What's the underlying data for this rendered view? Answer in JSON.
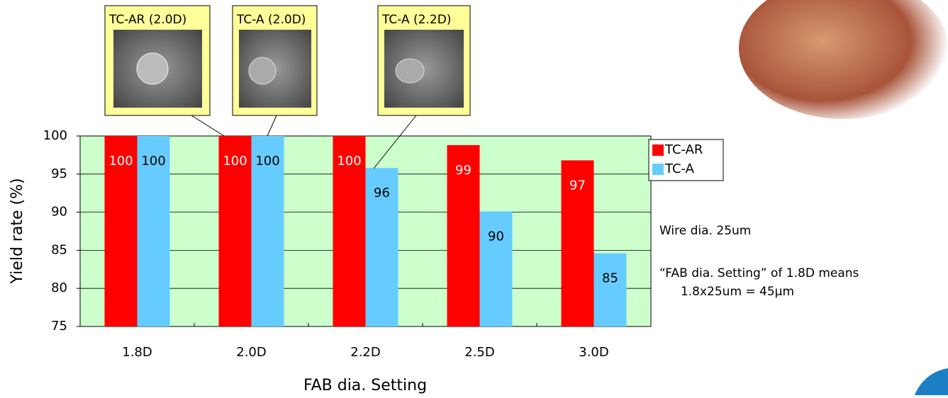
{
  "chart_data": {
    "type": "bar",
    "x_label": "FAB dia. Setting",
    "y_label": "Yield rate (%)",
    "categories": [
      "1.8D",
      "2.0D",
      "2.2D",
      "2.5D",
      "3.0D"
    ],
    "series": [
      {
        "name": "TC-AR",
        "color": "#ff0000",
        "values": [
          100,
          100,
          100,
          98.8,
          96.8
        ],
        "value_labels": [
          "100",
          "100",
          "100",
          "99",
          "97"
        ]
      },
      {
        "name": "TC-A",
        "color": "#66ccff",
        "values": [
          100,
          100,
          95.8,
          90.1,
          84.6
        ],
        "value_labels": [
          "100",
          "100",
          "96",
          "90",
          "85"
        ]
      }
    ],
    "ylim": [
      75,
      100
    ],
    "yticks": [
      75,
      80,
      85,
      90,
      95,
      100
    ],
    "grid": true,
    "legend": "right",
    "callouts": [
      "TC-AR (2.0D)",
      "TC-A (2.0D)",
      "TC-A (2.2D)"
    ],
    "notes": [
      "Wire dia.  25um",
      "“FAB dia. Setting” of 1.8D means",
      "1.8x25um = 45μm"
    ]
  }
}
